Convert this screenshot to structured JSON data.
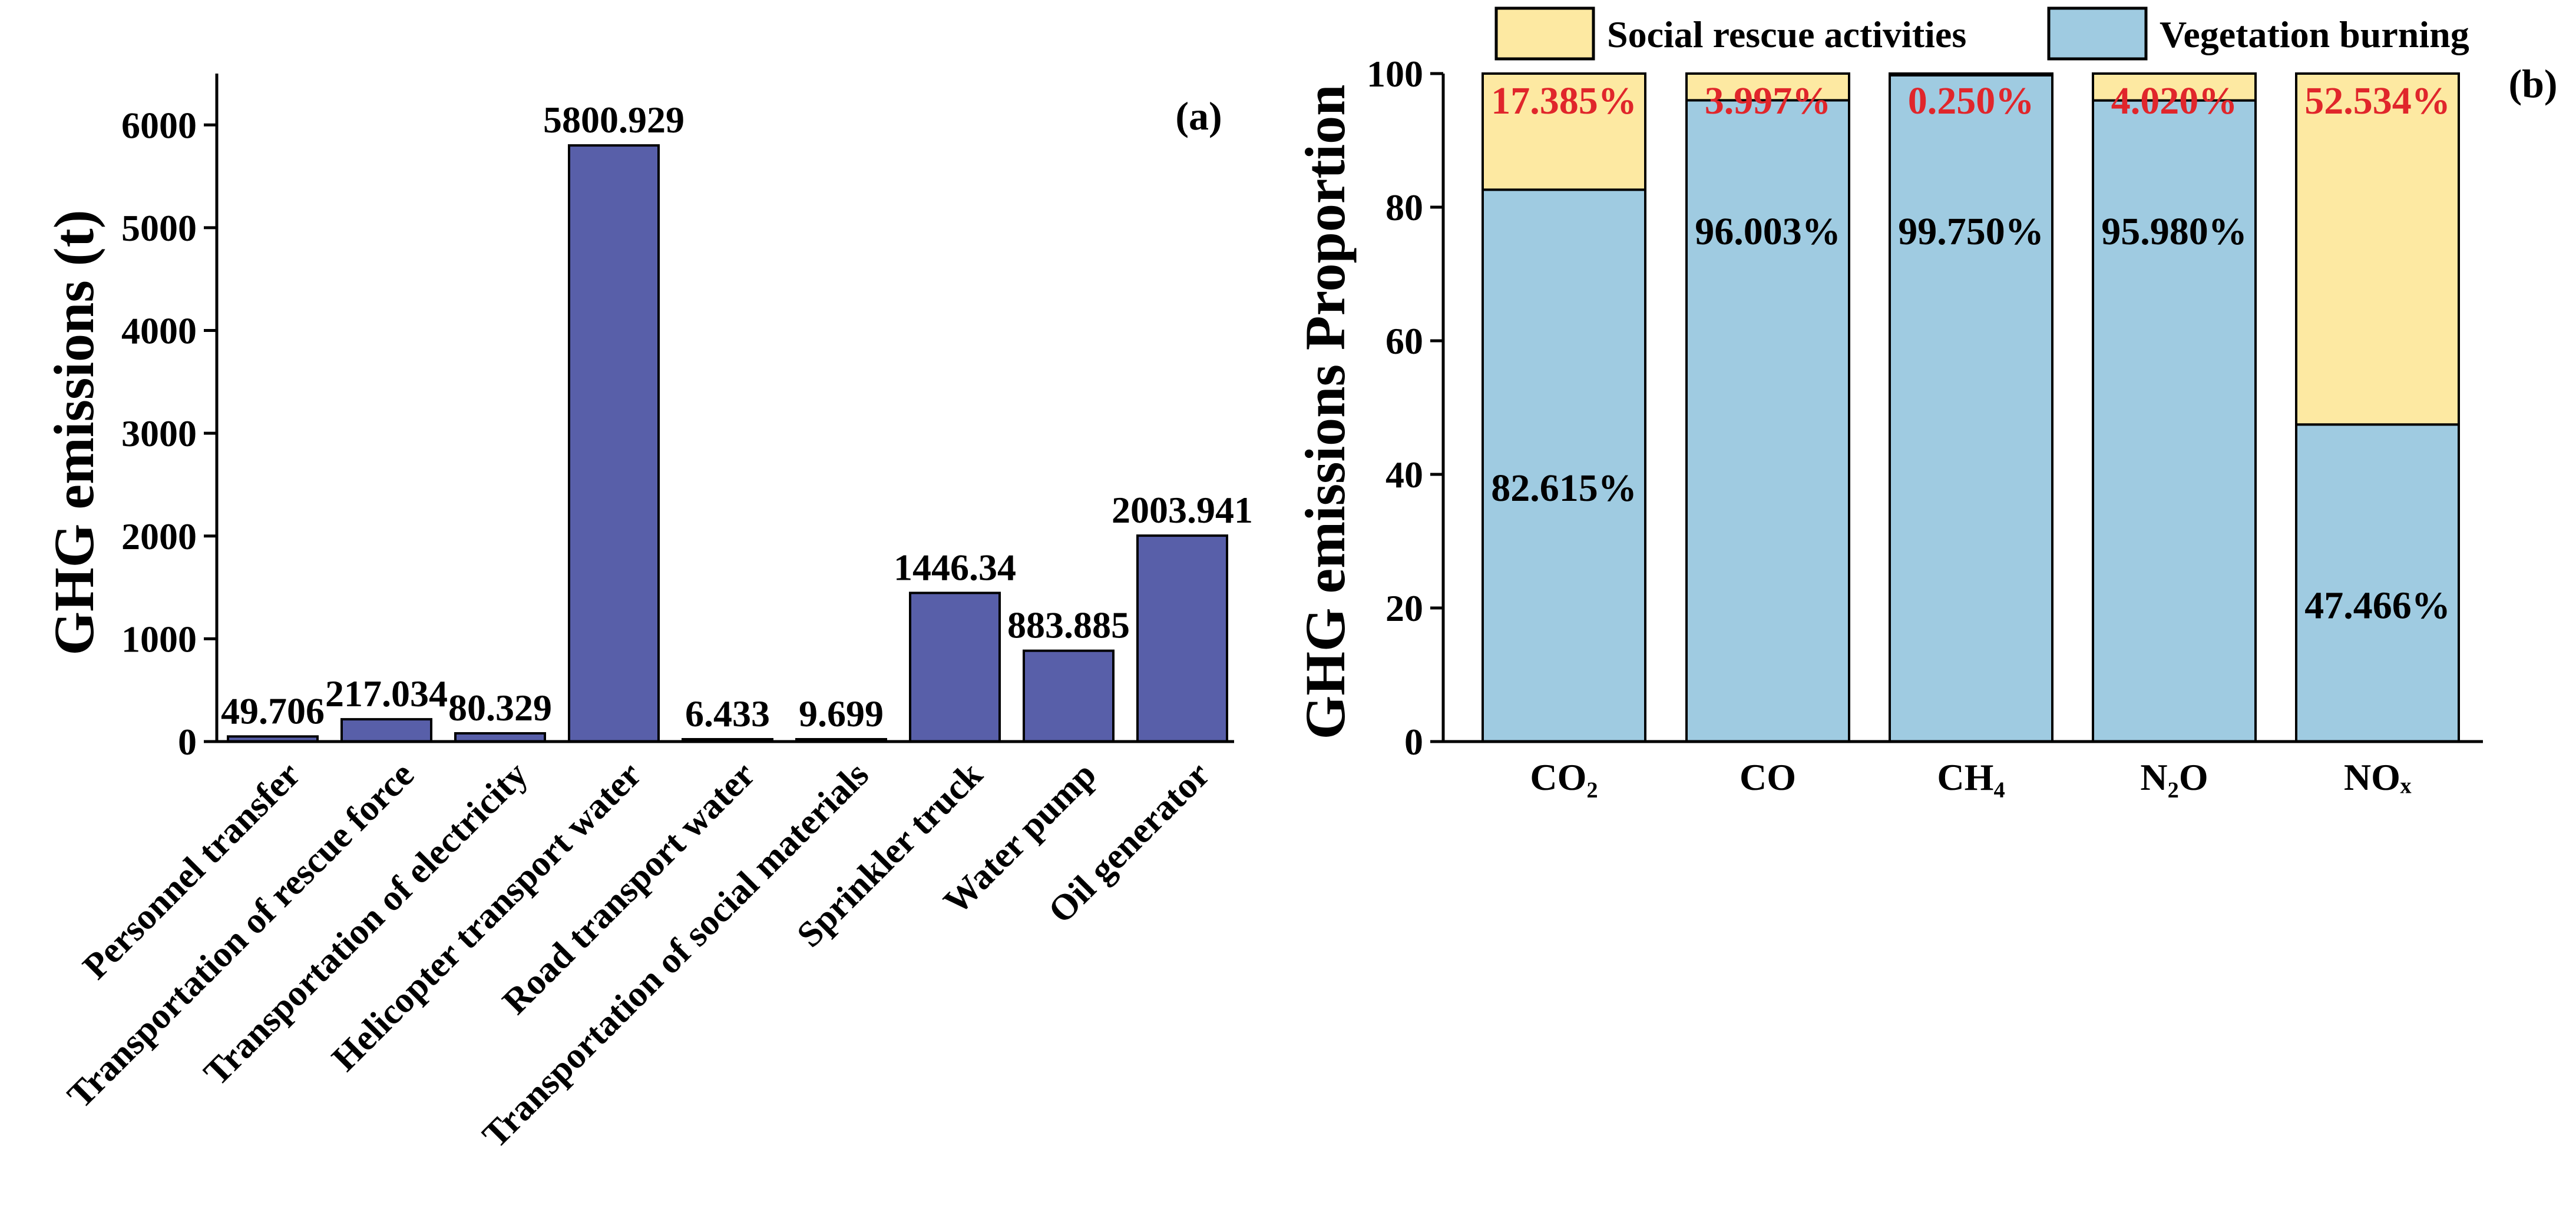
{
  "chart_data": [
    {
      "type": "bar",
      "panel_label": "(a)",
      "title": "",
      "xlabel": "",
      "ylabel": "GHG emissions (t)",
      "ylim": [
        0,
        6500
      ],
      "yticks": [
        0,
        1000,
        2000,
        3000,
        4000,
        5000,
        6000
      ],
      "bar_color": "#585fa9",
      "categories": [
        "Personnel transfer",
        "Transportation of rescue force",
        "Transportation of electricity",
        "Helicopter transport water",
        "Road transport water",
        "Transportation of social materials",
        "Sprinkler truck",
        "Water pump",
        "Oil generator"
      ],
      "values": [
        49.706,
        217.034,
        80.329,
        5800.929,
        6.433,
        9.699,
        1446.34,
        883.885,
        2003.941
      ],
      "value_labels": [
        "49.706",
        "217.034",
        "80.329",
        "5800.929",
        "6.433",
        "9.699",
        "1446.34",
        "883.885",
        "2003.941"
      ]
    },
    {
      "type": "bar",
      "stacked": true,
      "panel_label": "(b)",
      "title": "",
      "xlabel": "",
      "ylabel": "GHG emissions Proportion",
      "ylim": [
        0,
        100
      ],
      "yticks": [
        0,
        20,
        40,
        60,
        80,
        100
      ],
      "legend_position": "top",
      "categories": [
        "CO₂",
        "CO",
        "CH₄",
        "N₂O",
        "NOₓ"
      ],
      "series": [
        {
          "name": "Vegetation burning",
          "color": "#9fcbe1",
          "values": [
            82.615,
            96.003,
            99.75,
            95.98,
            47.466
          ],
          "labels": [
            "82.615%",
            "96.003%",
            "99.750%",
            "95.980%",
            "47.466%"
          ]
        },
        {
          "name": "Social rescue activities",
          "color": "#fde9a2",
          "values": [
            17.385,
            3.997,
            0.25,
            4.02,
            52.534
          ],
          "labels": [
            "17.385%",
            "3.997%",
            "0.250%",
            "4.020%",
            "52.534%"
          ]
        }
      ],
      "label_colors": {
        "top": "#e0262b",
        "bottom": "#000000"
      }
    }
  ]
}
